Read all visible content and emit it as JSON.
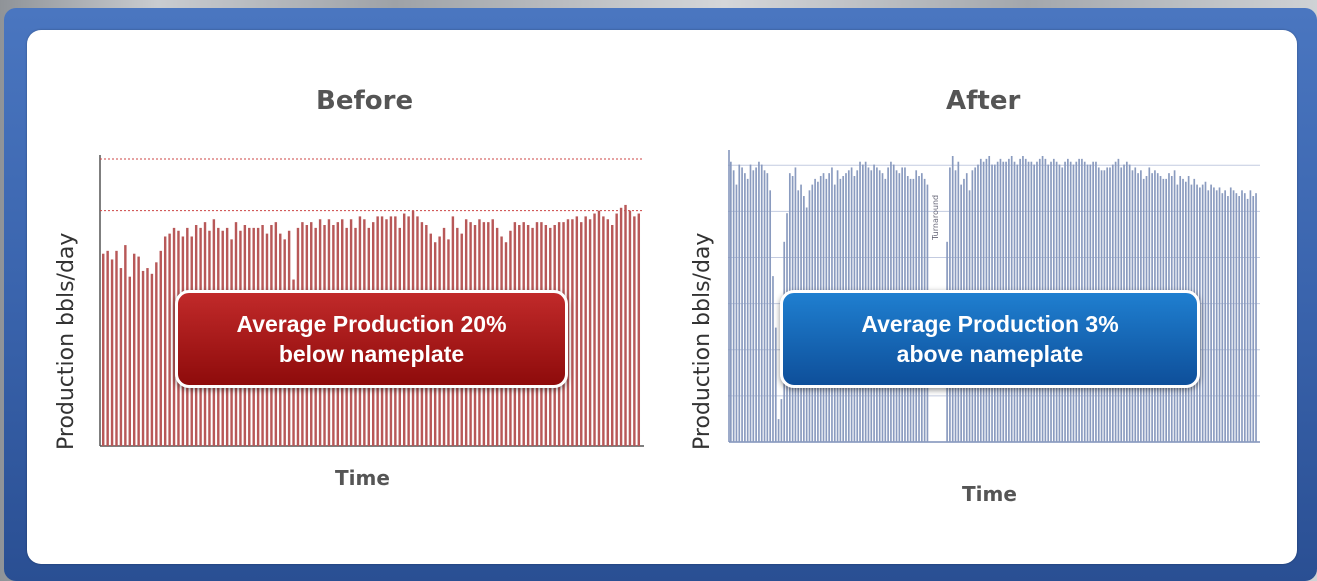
{
  "colors": {
    "before_bar": "#b85858",
    "after_bar": "#8a9bbf",
    "callout_red": "#a11a1a",
    "callout_blue": "#1466b4"
  },
  "chart_data": [
    {
      "type": "bar",
      "title": "Before",
      "xlabel": "Time",
      "ylabel": "Production bbls/day",
      "ylim": [
        0,
        100
      ],
      "annotation": {
        "line1": "Average Production 20%",
        "line2": "below nameplate"
      },
      "values": [
        67,
        68,
        65,
        68,
        62,
        70,
        59,
        67,
        66,
        61,
        62,
        60,
        64,
        68,
        73,
        74,
        76,
        75,
        73,
        76,
        73,
        77,
        76,
        78,
        75,
        79,
        76,
        75,
        76,
        72,
        78,
        75,
        77,
        76,
        76,
        76,
        77,
        74,
        77,
        78,
        74,
        72,
        75,
        58,
        76,
        78,
        77,
        78,
        76,
        79,
        77,
        79,
        77,
        78,
        79,
        76,
        79,
        76,
        80,
        79,
        76,
        78,
        80,
        80,
        79,
        80,
        80,
        76,
        81,
        80,
        82,
        80,
        78,
        77,
        74,
        71,
        73,
        76,
        72,
        80,
        76,
        74,
        79,
        78,
        77,
        79,
        78,
        78,
        79,
        76,
        73,
        71,
        75,
        78,
        77,
        78,
        77,
        76,
        78,
        78,
        77,
        76,
        77,
        78,
        78,
        79,
        79,
        80,
        78,
        80,
        79,
        81,
        82,
        80,
        79,
        77,
        81,
        83,
        84,
        82,
        80,
        81
      ]
    },
    {
      "type": "bar",
      "title": "After",
      "xlabel": "Time",
      "ylabel": "Production bbls/day",
      "ylim": [
        0,
        100
      ],
      "annotation": {
        "line1": "Average Production 3%",
        "line2": "above nameplate",
        "marker": "Turnaround"
      },
      "values": [
        98,
        95,
        90,
        97,
        96,
        94,
        92,
        97,
        95,
        96,
        98,
        97,
        95,
        94,
        88,
        58,
        40,
        8,
        15,
        70,
        80,
        94,
        93,
        96,
        88,
        90,
        86,
        82,
        88,
        90,
        92,
        91,
        93,
        94,
        92,
        94,
        96,
        90,
        95,
        92,
        93,
        94,
        95,
        96,
        93,
        95,
        98,
        97,
        98,
        96,
        95,
        97,
        96,
        95,
        94,
        92,
        96,
        98,
        97,
        95,
        94,
        96,
        96,
        93,
        92,
        92,
        95,
        93,
        94,
        92,
        90,
        0,
        0,
        0,
        0,
        0,
        0,
        70,
        96,
        100,
        95,
        98,
        90,
        92,
        94,
        88,
        95,
        96,
        97,
        99,
        98,
        99,
        100,
        97,
        97,
        98,
        99,
        98,
        98,
        99,
        100,
        98,
        97,
        99,
        100,
        99,
        98,
        98,
        97,
        98,
        99,
        100,
        99,
        97,
        98,
        99,
        98,
        97,
        96,
        98,
        99,
        98,
        97,
        98,
        99,
        99,
        98,
        97,
        97,
        98,
        98,
        96,
        95,
        95,
        96,
        96,
        97,
        98,
        99,
        96,
        97,
        98,
        97,
        95,
        96,
        94,
        95,
        92,
        93,
        96,
        94,
        95,
        94,
        93,
        92,
        92,
        94,
        93,
        95,
        90,
        93,
        92,
        91,
        93,
        90,
        92,
        90,
        89,
        90,
        91,
        88,
        90,
        89,
        88,
        89,
        87,
        88,
        86,
        89,
        88,
        87,
        86,
        88,
        87,
        85,
        88,
        86,
        87
      ]
    }
  ]
}
